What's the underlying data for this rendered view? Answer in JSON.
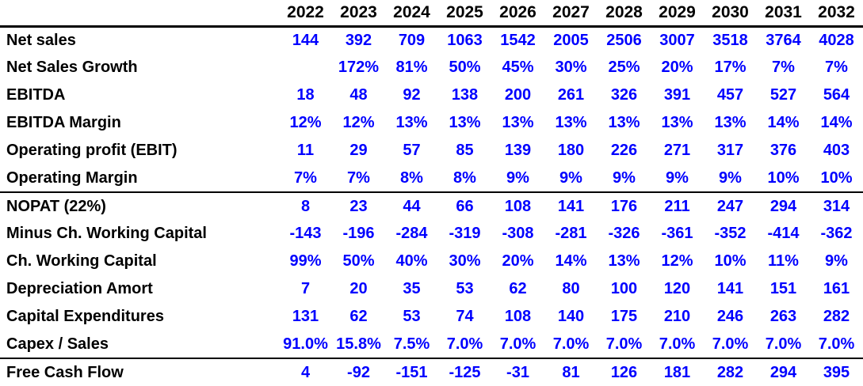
{
  "colors": {
    "label_text": "#000000",
    "value_text": "#0000ff",
    "divider": "#000000",
    "background": "#ffffff"
  },
  "table": {
    "corner_label": "",
    "years": [
      "2022",
      "2023",
      "2024",
      "2025",
      "2026",
      "2027",
      "2028",
      "2029",
      "2030",
      "2031",
      "2032"
    ],
    "rows": [
      {
        "label": "Net sales",
        "values": [
          "144",
          "392",
          "709",
          "1063",
          "1542",
          "2005",
          "2506",
          "3007",
          "3518",
          "3764",
          "4028"
        ],
        "divider_below": false
      },
      {
        "label": "Net Sales Growth",
        "values": [
          "",
          "172%",
          "81%",
          "50%",
          "45%",
          "30%",
          "25%",
          "20%",
          "17%",
          "7%",
          "7%"
        ],
        "divider_below": false
      },
      {
        "label": "EBITDA",
        "values": [
          "18",
          "48",
          "92",
          "138",
          "200",
          "261",
          "326",
          "391",
          "457",
          "527",
          "564"
        ],
        "divider_below": false
      },
      {
        "label": "EBITDA Margin",
        "values": [
          "12%",
          "12%",
          "13%",
          "13%",
          "13%",
          "13%",
          "13%",
          "13%",
          "13%",
          "14%",
          "14%"
        ],
        "divider_below": false
      },
      {
        "label": "Operating profit (EBIT)",
        "values": [
          "11",
          "29",
          "57",
          "85",
          "139",
          "180",
          "226",
          "271",
          "317",
          "376",
          "403"
        ],
        "divider_below": false
      },
      {
        "label": "Operating Margin",
        "values": [
          "7%",
          "7%",
          "8%",
          "8%",
          "9%",
          "9%",
          "9%",
          "9%",
          "9%",
          "10%",
          "10%"
        ],
        "divider_below": true
      },
      {
        "label": "NOPAT (22%)",
        "values": [
          "8",
          "23",
          "44",
          "66",
          "108",
          "141",
          "176",
          "211",
          "247",
          "294",
          "314"
        ],
        "divider_below": false
      },
      {
        "label": "Minus Ch. Working Capital",
        "values": [
          "-143",
          "-196",
          "-284",
          "-319",
          "-308",
          "-281",
          "-326",
          "-361",
          "-352",
          "-414",
          "-362"
        ],
        "divider_below": false
      },
      {
        "label": "Ch. Working Capital",
        "values": [
          "99%",
          "50%",
          "40%",
          "30%",
          "20%",
          "14%",
          "13%",
          "12%",
          "10%",
          "11%",
          "9%"
        ],
        "divider_below": false
      },
      {
        "label": "Depreciation Amort",
        "values": [
          "7",
          "20",
          "35",
          "53",
          "62",
          "80",
          "100",
          "120",
          "141",
          "151",
          "161"
        ],
        "divider_below": false
      },
      {
        "label": "Capital Expenditures",
        "values": [
          "131",
          "62",
          "53",
          "74",
          "108",
          "140",
          "175",
          "210",
          "246",
          "263",
          "282"
        ],
        "divider_below": false
      },
      {
        "label": "Capex / Sales",
        "values": [
          "91.0%",
          "15.8%",
          "7.5%",
          "7.0%",
          "7.0%",
          "7.0%",
          "7.0%",
          "7.0%",
          "7.0%",
          "7.0%",
          "7.0%"
        ],
        "divider_below": true
      },
      {
        "label": "Free Cash Flow",
        "values": [
          "4",
          "-92",
          "-151",
          "-125",
          "-31",
          "81",
          "126",
          "181",
          "282",
          "294",
          "395"
        ],
        "divider_below": false
      }
    ]
  }
}
